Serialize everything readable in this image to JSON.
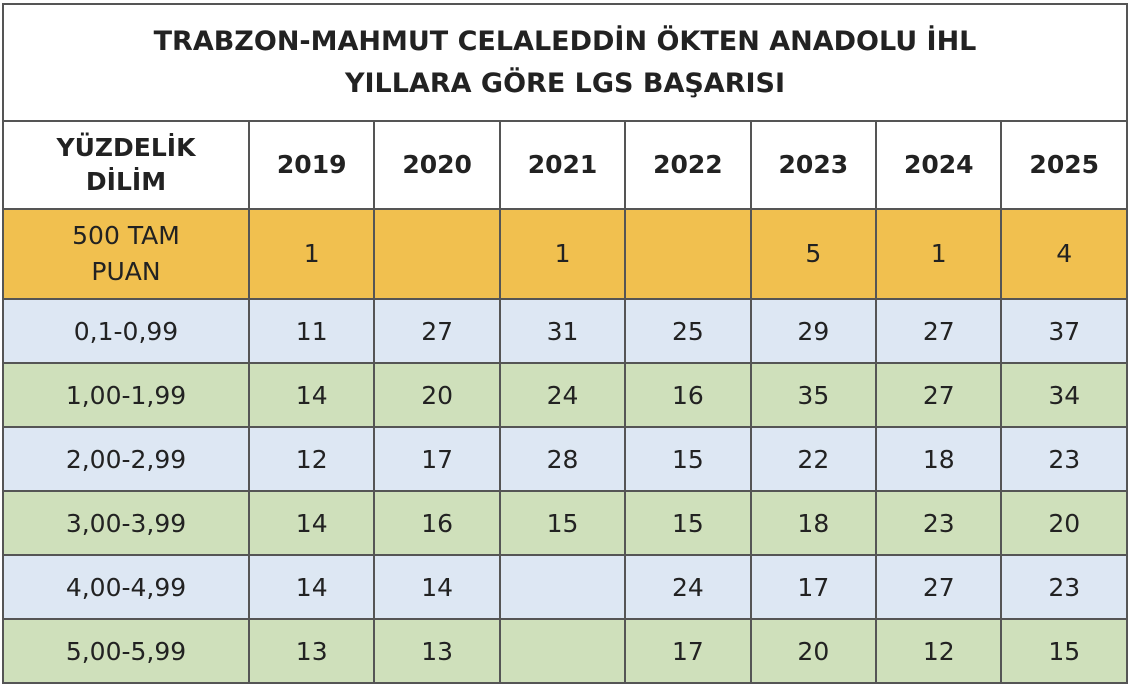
{
  "title_line1": "TRABZON-MAHMUT CELALEDDİN ÖKTEN ANADOLU İHL",
  "title_line2": "YILLARA GÖRE LGS BAŞARISI",
  "header": {
    "first_line1": "YÜZDELİK",
    "first_line2": "DİLİM",
    "years": [
      "2019",
      "2020",
      "2021",
      "2022",
      "2023",
      "2024",
      "2025"
    ]
  },
  "colors": {
    "gold": "#F1C04F",
    "blue": "#DDE7F3",
    "green": "#CFE0BB"
  },
  "rows": [
    {
      "label_line1": "500 TAM",
      "label_line2": "PUAN",
      "values": [
        "1",
        "",
        "1",
        "",
        "5",
        "1",
        "4"
      ]
    },
    {
      "label_line1": "0,1-0,99",
      "values": [
        "11",
        "27",
        "31",
        "25",
        "29",
        "27",
        "37"
      ]
    },
    {
      "label_line1": "1,00-1,99",
      "values": [
        "14",
        "20",
        "24",
        "16",
        "35",
        "27",
        "34"
      ]
    },
    {
      "label_line1": "2,00-2,99",
      "values": [
        "12",
        "17",
        "28",
        "15",
        "22",
        "18",
        "23"
      ]
    },
    {
      "label_line1": "3,00-3,99",
      "values": [
        "14",
        "16",
        "15",
        "15",
        "18",
        "23",
        "20"
      ]
    },
    {
      "label_line1": "4,00-4,99",
      "values": [
        "14",
        "14",
        "",
        "24",
        "17",
        "27",
        "23"
      ]
    },
    {
      "label_line1": "5,00-5,99",
      "values": [
        "13",
        "13",
        "",
        "17",
        "20",
        "12",
        "15"
      ]
    }
  ]
}
